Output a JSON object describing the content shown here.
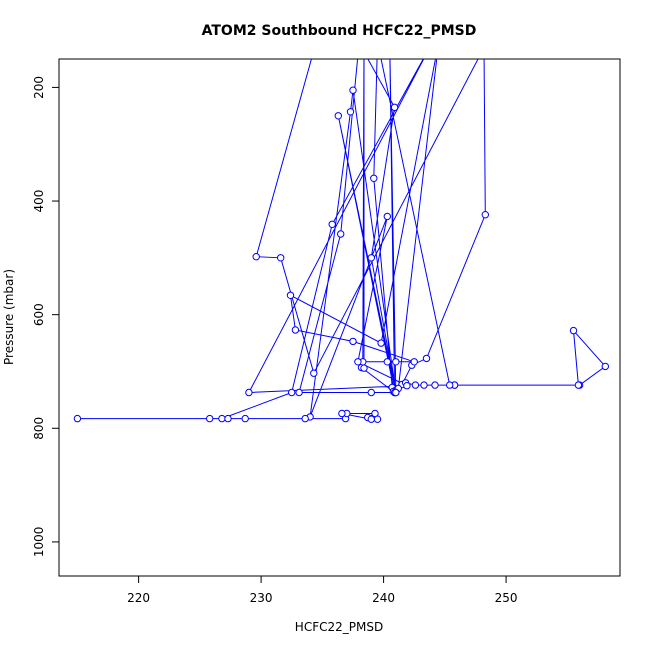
{
  "chart_data": {
    "type": "line",
    "title": "ATOM2 Southbound HCFC22_PMSD",
    "xlabel": "HCFC22_PMSD",
    "ylabel": "Pressure (mbar)",
    "xlim": [
      213.5,
      259.3
    ],
    "ylim": [
      1060,
      150
    ],
    "y_reversed": true,
    "x_ticks": [
      220,
      230,
      240,
      250
    ],
    "y_ticks": [
      200,
      400,
      600,
      800,
      1000
    ],
    "grid": false,
    "series": [
      {
        "color": "#0000ff",
        "marker": "open-circle",
        "points": [
          [
            234.5,
            120
          ],
          [
            229.6,
            498
          ],
          [
            231.6,
            500
          ],
          [
            234.3,
            703
          ],
          [
            248.2,
            130
          ],
          [
            248.3,
            424
          ],
          [
            243.5,
            677
          ],
          [
            242.3,
            689
          ],
          [
            241.5,
            723
          ],
          [
            241.8,
            720
          ],
          [
            242.6,
            724
          ],
          [
            243.3,
            724
          ],
          [
            244.2,
            724
          ],
          [
            245.8,
            724
          ],
          [
            256.0,
            724
          ],
          [
            258.1,
            691
          ],
          [
            255.5,
            628
          ],
          [
            255.9,
            724
          ],
          [
            245.8,
            724
          ],
          [
            245.4,
            724
          ],
          [
            239.5,
            120
          ],
          [
            239.2,
            360
          ],
          [
            240.7,
            728
          ],
          [
            241.0,
            733
          ],
          [
            240.5,
            120
          ],
          [
            240.9,
            737
          ],
          [
            238.2,
            693
          ],
          [
            238.4,
            694
          ],
          [
            238.4,
            120
          ],
          [
            238.3,
            683
          ],
          [
            240.3,
            683
          ],
          [
            241.0,
            683
          ],
          [
            242.5,
            683
          ],
          [
            237.5,
            647
          ],
          [
            232.8,
            627
          ],
          [
            232.4,
            566
          ],
          [
            239.8,
            650
          ],
          [
            244.5,
            120
          ],
          [
            241.2,
            730
          ],
          [
            240.8,
            735
          ],
          [
            241.0,
            737
          ],
          [
            236.3,
            250
          ],
          [
            240.9,
            737
          ],
          [
            239.0,
            737
          ],
          [
            233.1,
            737
          ],
          [
            236.5,
            458
          ],
          [
            238.0,
            122
          ],
          [
            240.9,
            235
          ],
          [
            239.0,
            500
          ],
          [
            241.0,
            737
          ],
          [
            237.5,
            205
          ],
          [
            237.3,
            243
          ],
          [
            234.0,
            780
          ],
          [
            240.3,
            427
          ],
          [
            237.9,
            683
          ],
          [
            241.9,
            725
          ],
          [
            229.0,
            737
          ],
          [
            244.0,
            120
          ],
          [
            235.8,
            441
          ],
          [
            232.5,
            737
          ],
          [
            226.8,
            783
          ],
          [
            215.0,
            783
          ],
          [
            225.8,
            783
          ],
          [
            227.3,
            783
          ],
          [
            228.7,
            783
          ],
          [
            233.6,
            783
          ],
          [
            236.9,
            783
          ],
          [
            237.0,
            774
          ],
          [
            239.3,
            774
          ],
          [
            238.7,
            781
          ],
          [
            239.5,
            784
          ],
          [
            239.0,
            784
          ],
          [
            236.6,
            774
          ]
        ]
      }
    ]
  }
}
